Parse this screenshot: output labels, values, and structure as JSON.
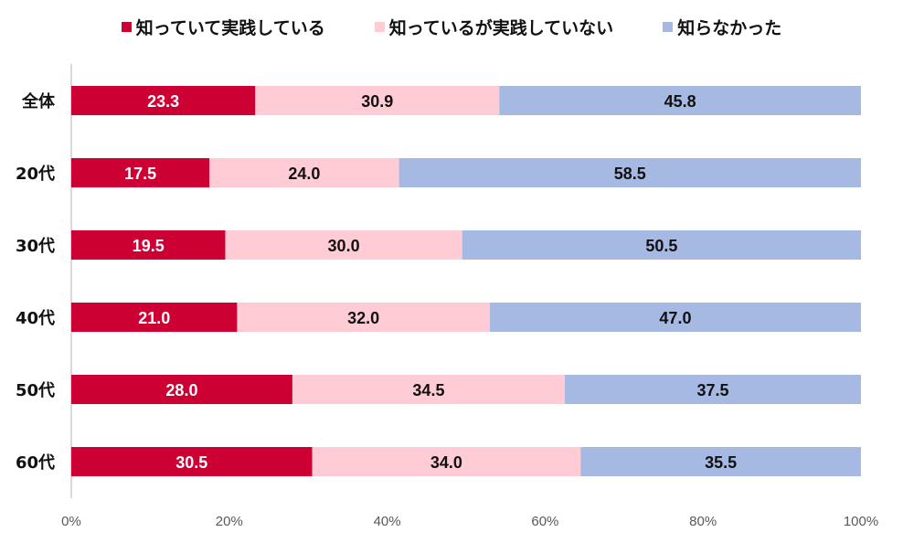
{
  "chart_data": {
    "type": "bar",
    "orientation": "horizontal",
    "stacked": "percent",
    "title": "",
    "xlabel": "",
    "ylabel": "",
    "categories": [
      "全体",
      "20代",
      "30代",
      "40代",
      "50代",
      "60代"
    ],
    "series": [
      {
        "name": "知っていて実践している",
        "color": "#cc0033",
        "label_color": "#ffffff",
        "values": [
          23.3,
          17.5,
          19.5,
          21.0,
          28.0,
          30.5
        ]
      },
      {
        "name": "知っているが実践していない",
        "color": "#ffccd5",
        "label_color": "#111111",
        "values": [
          30.9,
          24.0,
          30.0,
          32.0,
          34.5,
          34.0
        ]
      },
      {
        "name": "知らなかった",
        "color": "#a6b9e3",
        "label_color": "#111111",
        "values": [
          45.8,
          58.5,
          50.5,
          47.0,
          37.5,
          35.5
        ]
      }
    ],
    "xlim": [
      0,
      100
    ],
    "xticks": [
      "0%",
      "20%",
      "40%",
      "60%",
      "80%",
      "100%"
    ],
    "grid": false,
    "legend_position": "top"
  }
}
